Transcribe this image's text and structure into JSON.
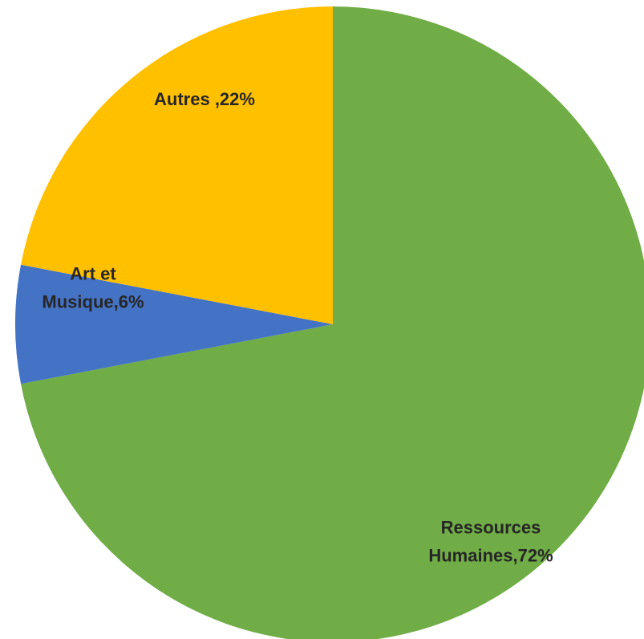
{
  "chart_data": {
    "type": "pie",
    "slices": [
      {
        "label_lines": [
          "Ressources",
          "Humaines,72%"
        ],
        "value": 72,
        "color": "#70AD47"
      },
      {
        "label_lines": [
          "Art et",
          "Musique,6%"
        ],
        "value": 6,
        "color": "#4472C4"
      },
      {
        "label_lines": [
          "Autres ,22%"
        ],
        "value": 22,
        "color": "#FFC000"
      }
    ],
    "start": "12 o'clock",
    "direction": "clockwise",
    "legend": "none",
    "data_labels": "inside slices"
  }
}
